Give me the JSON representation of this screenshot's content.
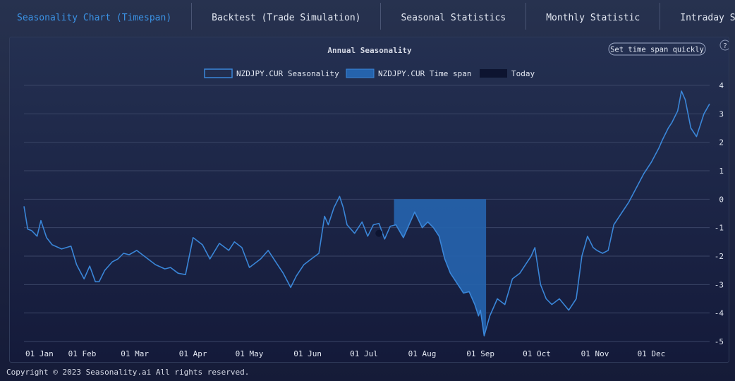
{
  "tabs": [
    {
      "label": "Seasonality Chart (Timespan)",
      "active": true
    },
    {
      "label": "Backtest (Trade Simulation)",
      "active": false
    },
    {
      "label": "Seasonal Statistics",
      "active": false
    },
    {
      "label": "Monthly Statistic",
      "active": false
    },
    {
      "label": "Intraday Seasonality Char",
      "active": false
    }
  ],
  "quick_button": "Set time span quickly",
  "help_icon": "?",
  "footer": "Copyright © 2023 Seasonality.ai All rights reserved.",
  "colors": {
    "line": "#3a86d8",
    "span_fill": "#2563ad",
    "today": "#0d1430",
    "accent": "#3b93e6"
  },
  "chart_data": {
    "type": "line",
    "title": "Annual Seasonality",
    "legend": [
      {
        "name": "NZDJPY.CUR Seasonality",
        "style": "outline"
      },
      {
        "name": "NZDJPY.CUR Time span",
        "style": "filled"
      },
      {
        "name": "Today",
        "style": "dark"
      }
    ],
    "x_ticks": [
      "01 Jan",
      "01 Feb",
      "01 Mar",
      "01 Apr",
      "01 May",
      "01 Jun",
      "01 Jul",
      "01 Aug",
      "01 Sep",
      "01 Oct",
      "01 Nov",
      "01 Dec"
    ],
    "x_tick_days": [
      0,
      31,
      59,
      90,
      120,
      151,
      181,
      212,
      243,
      273,
      304,
      334
    ],
    "xlim": [
      0,
      365
    ],
    "ylim": [
      -5,
      4
    ],
    "y_ticks": [
      4,
      3,
      2,
      1,
      0,
      -1,
      -2,
      -3,
      -4,
      -5
    ],
    "grid": true,
    "y_axis_side": "right",
    "x": [
      0,
      2,
      4,
      7,
      9,
      12,
      15,
      20,
      25,
      28,
      30,
      32,
      35,
      38,
      40,
      43,
      47,
      50,
      53,
      56,
      60,
      65,
      70,
      75,
      78,
      82,
      86,
      90,
      95,
      99,
      104,
      109,
      112,
      116,
      120,
      126,
      130,
      134,
      138,
      142,
      145,
      149,
      153,
      157,
      160,
      162,
      165,
      168,
      170,
      172,
      176,
      180,
      183,
      186,
      189,
      192,
      195,
      198,
      202,
      205,
      208,
      212,
      215,
      218,
      221,
      224,
      227,
      230,
      234,
      237,
      240,
      242,
      243,
      245,
      248,
      252,
      256,
      260,
      264,
      267,
      270,
      272,
      275,
      278,
      281,
      285,
      290,
      294,
      297,
      300,
      303,
      305,
      308,
      311,
      314,
      318,
      322,
      326,
      330,
      334,
      338,
      340,
      343,
      345,
      348,
      350,
      352,
      355,
      358,
      360,
      362,
      365
    ],
    "y": [
      -0.25,
      -1.05,
      -1.1,
      -1.3,
      -0.75,
      -1.35,
      -1.6,
      -1.75,
      -1.65,
      -2.3,
      -2.55,
      -2.8,
      -2.35,
      -2.9,
      -2.9,
      -2.5,
      -2.2,
      -2.1,
      -1.9,
      -1.95,
      -1.8,
      -2.05,
      -2.3,
      -2.45,
      -2.4,
      -2.6,
      -2.65,
      -1.35,
      -1.6,
      -2.1,
      -1.55,
      -1.8,
      -1.5,
      -1.7,
      -2.4,
      -2.1,
      -1.8,
      -2.2,
      -2.6,
      -3.1,
      -2.7,
      -2.3,
      -2.1,
      -1.9,
      -0.6,
      -0.9,
      -0.3,
      0.1,
      -0.3,
      -0.9,
      -1.2,
      -0.8,
      -1.3,
      -0.9,
      -0.85,
      -1.4,
      -0.95,
      -0.9,
      -1.35,
      -0.9,
      -0.45,
      -1.0,
      -0.8,
      -1.0,
      -1.3,
      -2.1,
      -2.6,
      -2.9,
      -3.3,
      -3.25,
      -3.7,
      -4.1,
      -3.9,
      -4.8,
      -4.1,
      -3.5,
      -3.7,
      -2.8,
      -2.6,
      -2.3,
      -2.0,
      -1.7,
      -3.0,
      -3.5,
      -3.7,
      -3.5,
      -3.9,
      -3.5,
      -2.0,
      -1.3,
      -1.7,
      -1.8,
      -1.9,
      -1.8,
      -0.9,
      -0.5,
      -0.1,
      0.4,
      0.9,
      1.3,
      1.8,
      2.1,
      2.5,
      2.7,
      3.1,
      3.8,
      3.5,
      2.5,
      2.2,
      2.6,
      3.0,
      3.35
    ],
    "time_span": {
      "start_day": 197,
      "end_day": 246
    },
    "today_day": 189
  }
}
